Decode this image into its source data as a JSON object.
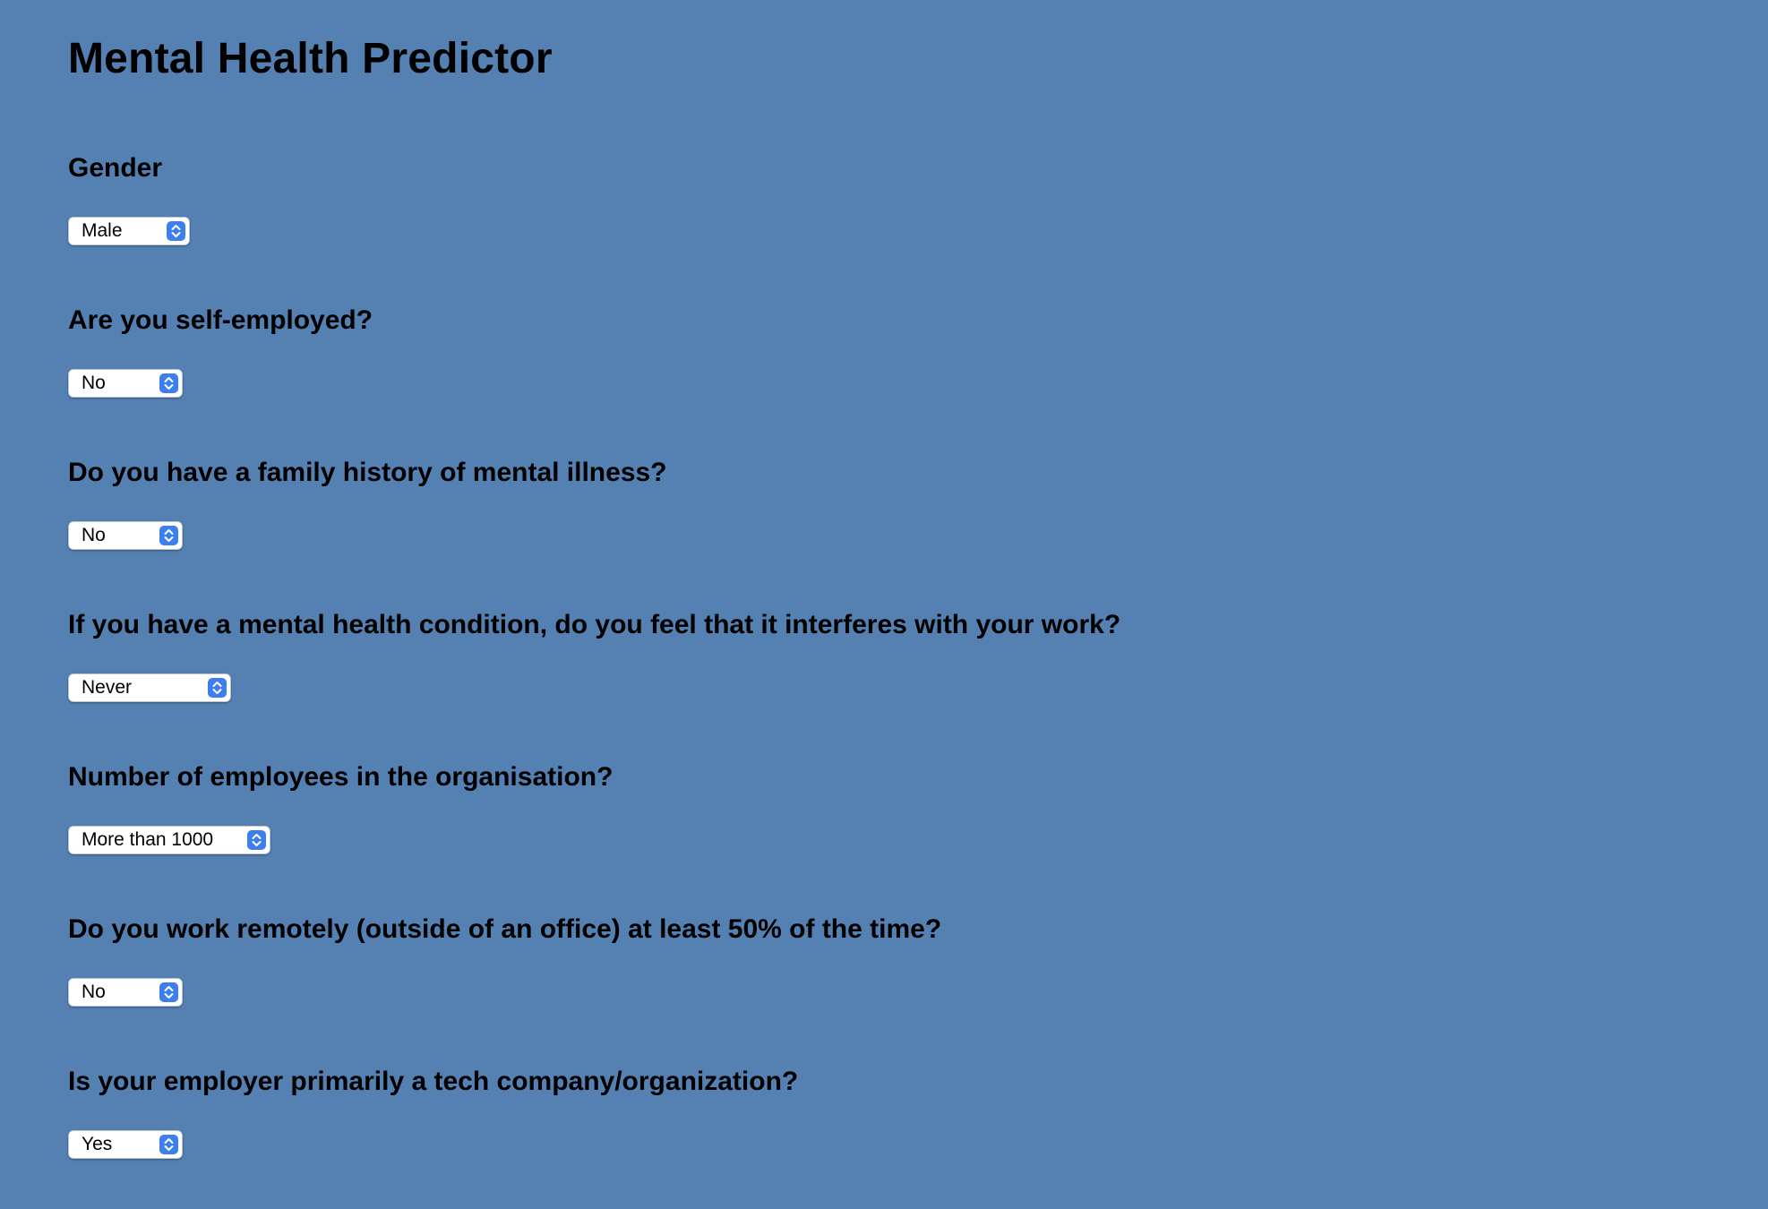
{
  "page": {
    "title": "Mental Health Predictor",
    "background_color": "#5580b2",
    "accent_color": "#3e7ff0"
  },
  "questions": [
    {
      "label": "Gender",
      "selected": "Male"
    },
    {
      "label": "Are you self-employed?",
      "selected": "No"
    },
    {
      "label": "Do you have a family history of mental illness?",
      "selected": "No"
    },
    {
      "label": "If you have a mental health condition, do you feel that it interferes with your work?",
      "selected": "Never"
    },
    {
      "label": "Number of employees in the organisation?",
      "selected": "More than 1000"
    },
    {
      "label": "Do you work remotely (outside of an office) at least 50% of the time?",
      "selected": "No"
    },
    {
      "label": "Is your employer primarily a tech company/organization?",
      "selected": "Yes"
    }
  ],
  "icons": {
    "select_arrows": "chevron-up-down-icon"
  }
}
